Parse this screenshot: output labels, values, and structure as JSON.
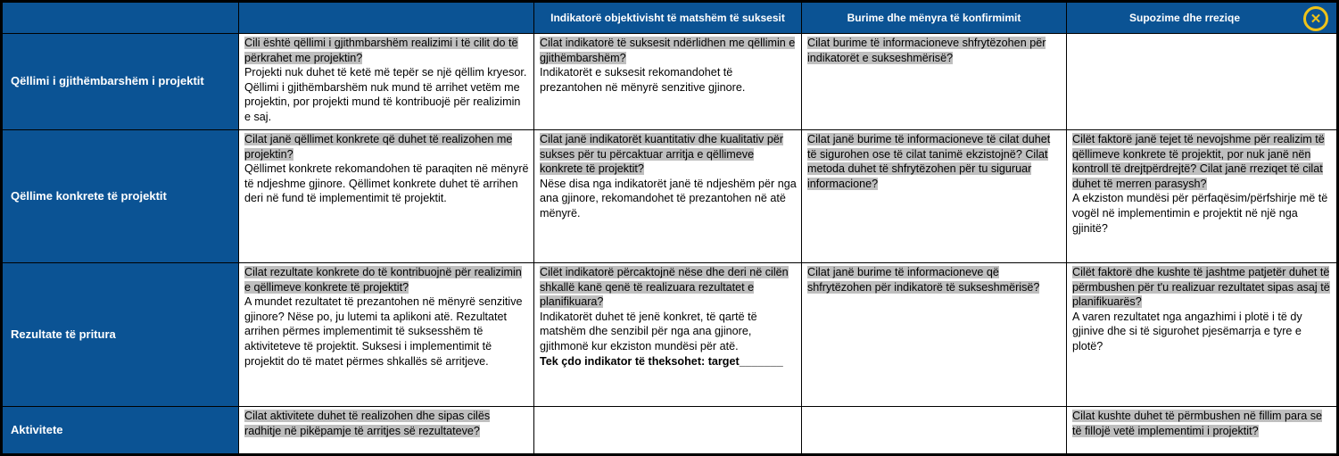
{
  "table": {
    "column_headers": {
      "project": "",
      "description": "",
      "indicators": "Indikatorë objektivisht të matshëm të suksesit",
      "sources": "Burime dhe mënyra të konfirmimit",
      "assumptions": "Supozime dhe rreziqe"
    },
    "icons": {
      "close": "✕"
    },
    "colors": {
      "header_blue": "#0B5394",
      "highlight_gray": "#BFBFBF",
      "close_yellow": "#EFC319",
      "grid_black": "#000000"
    },
    "rows": [
      {
        "label": "Qëllimi i gjithëmbarshëm i projektit",
        "cells": [
          {
            "q": "Cili është qëllimi i gjithmbarshëm realizimi i të cilit do të përkrahet me projektin?",
            "note": "Projekti nuk duhet të ketë më tepër se një qëllim kryesor. Qëllimi i gjithëmbarshëm nuk mund të arrihet vetëm me projektin, por projekti mund të kontribuojë për realizimin  e saj."
          },
          {
            "q": "Cilat indikatorë të suksesit ndërlidhen me qëllimin e gjithëmbarshëm?",
            "note": "Indikatorët e suksesit rekomandohet të prezantohen në mënyrë senzitive gjinore."
          },
          {
            "q": "Cilat burime të informacioneve shfrytëzohen për indikatorët e sukseshmërisë?"
          },
          {}
        ]
      },
      {
        "label": "Qëllime konkrete të projektit",
        "cells": [
          {
            "q": "Cilat janë qëllimet konkrete që duhet të realizohen me projektin?",
            "note": "Qëllimet konkrete rekomandohen të paraqiten në mënyrë të ndjeshme gjinore. Qëllimet konkrete duhet të arrihen deri në fund të implementimit të projektit."
          },
          {
            "q": "Cilat janë indikatorët kuantitativ dhe kualitativ për sukses për tu përcaktuar arritja e qëllimeve konkrete të projektit?",
            "note": "Nëse disa nga indikatorët janë të ndjeshëm për nga ana gjinore, rekomandohet të prezantohen në atë mënyrë."
          },
          {
            "q": "Cilat janë burime të informacioneve të cilat duhet të sigurohen ose të cilat tanimë ekzistojnë? Cilat metoda duhet të shfrytëzohen për tu siguruar informacione?"
          },
          {
            "q": "Cilët faktorë janë tejet të nevojshme për realizim të qëllimeve konkrete të projektit, por nuk janë nën kontroll të drejtpërdrejtë? Cilat janë rreziqet të cilat duhet të merren parasysh?",
            "note": "A ekziston mundësi për përfaqësim/përfshirje më të vogël në implementimin e projektit në një nga gjinitë?"
          }
        ]
      },
      {
        "label": "Rezultate të pritura",
        "cells": [
          {
            "q": "Cilat rezultate konkrete do të kontribuojnë për realizimin e qëllimeve konkrete të projektit?",
            "note": "A mundet rezultatet të prezantohen në mënyrë senzitive gjinore? Nëse po, ju lutemi ta aplikoni atë. Rezultatet arrihen përmes implementimit të suksesshëm të aktiviteteve të projektit. Suksesi i implementimit të projektit do të matet përmes shkallës së arritjeve."
          },
          {
            "q": "Cilët indikatorë përcaktojnë nëse dhe deri në cilën shkallë kanë qenë të realizuara rezultatet e planifikuara?",
            "note": "Indikatorët duhet të jenë konkret, të qartë të matshëm dhe senzibil për nga ana gjinore, gjithmonë kur ekziston mundësi për atë.",
            "bold": "Tek çdo indikator të theksohet: target_______"
          },
          {
            "q": "Cilat janë burime të informacioneve që shfrytëzohen për indikatorë të sukseshmërisë?"
          },
          {
            "q": "Cilët faktorë dhe kushte të jashtme patjetër duhet të përmbushen për t'u realizuar rezultatet sipas asaj të planifikuarës?",
            "note": "A varen rezultatet nga angazhimi i plotë i të dy gjinive dhe si të sigurohet pjesëmarrja e tyre e plotë?"
          }
        ]
      },
      {
        "label": "Aktivitete",
        "cells": [
          {
            "q": "Cilat aktivitete duhet të realizohen dhe sipas cilës radhitje në pikëpamje të arritjes së rezultateve?"
          },
          {},
          {},
          {
            "q": "Cilat kushte duhet të përmbushen në fillim para se të fillojë vetë implementimi i projektit?"
          }
        ]
      }
    ]
  }
}
